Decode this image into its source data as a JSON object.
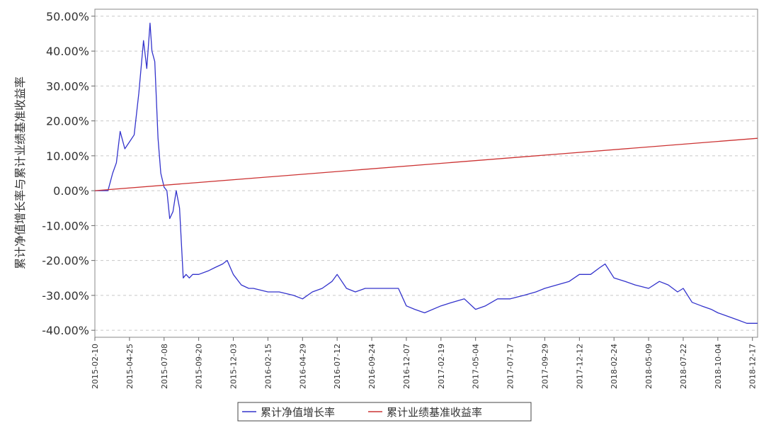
{
  "chart_data": {
    "type": "line",
    "title": "",
    "xlabel": "",
    "ylabel": "累计净值增长率与累计业绩基准收益率",
    "ylim": [
      -42,
      52
    ],
    "yticks": [
      50,
      40,
      30,
      20,
      10,
      0,
      -10,
      -20,
      -30,
      -40
    ],
    "ytick_labels": [
      "50.00%",
      "40.00%",
      "30.00%",
      "20.00%",
      "10.00%",
      "0.00%",
      "-10.00%",
      "-20.00%",
      "-30.00%",
      "-40.00%"
    ],
    "xlim": [
      "2015-02-10",
      "2018-12-28"
    ],
    "xtick_labels": [
      "2015-02-10",
      "2015-04-25",
      "2015-07-08",
      "2015-09-20",
      "2015-12-03",
      "2016-02-15",
      "2016-04-29",
      "2016-07-12",
      "2016-09-24",
      "2016-12-07",
      "2017-02-19",
      "2017-05-04",
      "2017-07-17",
      "2017-09-29",
      "2017-12-12",
      "2018-02-24",
      "2018-05-09",
      "2018-07-22",
      "2018-10-04",
      "2018-12-17"
    ],
    "grid": true,
    "legend_position": "bottom",
    "series": [
      {
        "name": "累计净值增长率",
        "color": "#3333cc",
        "x": [
          "2015-02-10",
          "2015-03-01",
          "2015-03-10",
          "2015-03-20",
          "2015-03-28",
          "2015-04-05",
          "2015-04-15",
          "2015-04-25",
          "2015-05-05",
          "2015-05-15",
          "2015-05-25",
          "2015-06-01",
          "2015-06-08",
          "2015-06-12",
          "2015-06-18",
          "2015-06-25",
          "2015-07-01",
          "2015-07-08",
          "2015-07-14",
          "2015-07-20",
          "2015-07-27",
          "2015-08-03",
          "2015-08-10",
          "2015-08-18",
          "2015-08-24",
          "2015-08-31",
          "2015-09-07",
          "2015-09-20",
          "2015-10-10",
          "2015-10-25",
          "2015-11-10",
          "2015-11-20",
          "2015-12-03",
          "2015-12-20",
          "2016-01-05",
          "2016-01-15",
          "2016-02-15",
          "2016-03-10",
          "2016-04-10",
          "2016-04-29",
          "2016-05-20",
          "2016-06-10",
          "2016-07-01",
          "2016-07-12",
          "2016-08-01",
          "2016-08-20",
          "2016-09-10",
          "2016-09-24",
          "2016-10-20",
          "2016-11-20",
          "2016-12-07",
          "2016-12-25",
          "2017-01-15",
          "2017-02-19",
          "2017-03-15",
          "2017-04-10",
          "2017-05-04",
          "2017-05-25",
          "2017-06-20",
          "2017-07-17",
          "2017-08-15",
          "2017-09-10",
          "2017-09-29",
          "2017-10-25",
          "2017-11-20",
          "2017-12-12",
          "2018-01-05",
          "2018-01-25",
          "2018-02-05",
          "2018-02-24",
          "2018-03-20",
          "2018-04-10",
          "2018-05-09",
          "2018-06-01",
          "2018-06-20",
          "2018-07-10",
          "2018-07-22",
          "2018-08-10",
          "2018-08-30",
          "2018-09-20",
          "2018-10-04",
          "2018-10-25",
          "2018-11-15",
          "2018-12-05",
          "2018-12-17",
          "2018-12-28"
        ],
        "values": [
          0,
          0,
          0,
          5,
          8,
          17,
          12,
          14,
          16,
          28,
          43,
          35,
          48,
          40,
          37,
          15,
          5,
          1,
          0,
          -8,
          -6,
          0,
          -5,
          -25,
          -24,
          -25,
          -24,
          -24,
          -23,
          -22,
          -21,
          -20,
          -24,
          -27,
          -28,
          -28,
          -29,
          -29,
          -30,
          -31,
          -29,
          -28,
          -26,
          -24,
          -28,
          -29,
          -28,
          -28,
          -28,
          -28,
          -33,
          -34,
          -35,
          -33,
          -32,
          -31,
          -34,
          -33,
          -31,
          -31,
          -30,
          -29,
          -28,
          -27,
          -26,
          -24,
          -24,
          -22,
          -21,
          -25,
          -26,
          -27,
          -28,
          -26,
          -27,
          -29,
          -28,
          -32,
          -33,
          -34,
          -35,
          -36,
          -37,
          -38,
          -38,
          -38
        ]
      },
      {
        "name": "累计业绩基准收益率",
        "color": "#cc3333",
        "x": [
          "2015-02-10",
          "2018-12-28"
        ],
        "values": [
          0,
          15
        ]
      }
    ]
  }
}
